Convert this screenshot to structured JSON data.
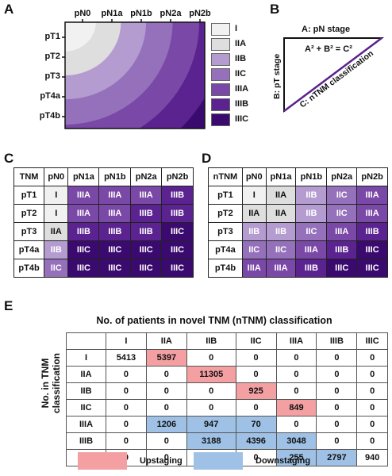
{
  "panels": {
    "a": "A",
    "b": "B",
    "c": "C",
    "d": "D",
    "e": "E"
  },
  "colors": {
    "I": "#f1f1f1",
    "IIA": "#dedede",
    "IIB": "#b49cd0",
    "IIC": "#9671bb",
    "IIIA": "#7a48a6",
    "IIIB": "#5a2390",
    "IIIC": "#3a0a6e",
    "upstaging": "#f4a0a2",
    "downstaging": "#9fc1e6",
    "grid_header": "#ffffff"
  },
  "panel_a": {
    "columns": [
      "pN0",
      "pN1a",
      "pN1b",
      "pN2a",
      "pN2b"
    ],
    "rows": [
      "pT1",
      "pT2",
      "pT3",
      "pT4a",
      "pT4b"
    ],
    "legend": [
      "I",
      "IIA",
      "IIB",
      "IIC",
      "IIIA",
      "IIIB",
      "IIIC"
    ]
  },
  "panel_b": {
    "pn": "A: pN stage",
    "formula": "A² + B² = C²",
    "pt": "B: pT stage",
    "ntnm": "C: nTNM classification"
  },
  "panel_c": {
    "header": [
      "TNM",
      "pN0",
      "pN1a",
      "pN1b",
      "pN2a",
      "pN2b"
    ],
    "rows": [
      {
        "label": "pT1",
        "cells": [
          "I",
          "IIIA",
          "IIIA",
          "IIIA",
          "IIIB"
        ]
      },
      {
        "label": "pT2",
        "cells": [
          "I",
          "IIIA",
          "IIIA",
          "IIIB",
          "IIIB"
        ]
      },
      {
        "label": "pT3",
        "cells": [
          "IIA",
          "IIIB",
          "IIIB",
          "IIIB",
          "IIIC"
        ]
      },
      {
        "label": "pT4a",
        "cells": [
          "IIB",
          "IIIC",
          "IIIC",
          "IIIC",
          "IIIC"
        ]
      },
      {
        "label": "pT4b",
        "cells": [
          "IIC",
          "IIIC",
          "IIIC",
          "IIIC",
          "IIIC"
        ]
      }
    ]
  },
  "panel_d": {
    "header": [
      "nTNM",
      "pN0",
      "pN1a",
      "pN1b",
      "pN2a",
      "pN2b"
    ],
    "rows": [
      {
        "label": "pT1",
        "cells": [
          "I",
          "IIA",
          "IIB",
          "IIC",
          "IIIA"
        ]
      },
      {
        "label": "pT2",
        "cells": [
          "IIA",
          "IIA",
          "IIB",
          "IIC",
          "IIIA"
        ]
      },
      {
        "label": "pT3",
        "cells": [
          "IIB",
          "IIB",
          "IIC",
          "IIIA",
          "IIIB"
        ]
      },
      {
        "label": "pT4a",
        "cells": [
          "IIC",
          "IIC",
          "IIIA",
          "IIIB",
          "IIIC"
        ]
      },
      {
        "label": "pT4b",
        "cells": [
          "IIIA",
          "IIIA",
          "IIIB",
          "IIIC",
          "IIIC"
        ]
      }
    ]
  },
  "panel_e": {
    "title": "No. of patients in novel TNM (nTNM) classification",
    "ylabel_line1": "No. in TNM",
    "ylabel_line2": "classification",
    "columns": [
      "I",
      "IIA",
      "IIB",
      "IIC",
      "IIIA",
      "IIIB",
      "IIIC"
    ],
    "rows": [
      {
        "label": "I",
        "values": [
          "5413",
          "5397",
          "0",
          "0",
          "0",
          "0",
          "0"
        ],
        "hl": [
          "",
          "up",
          "",
          "",
          "",
          "",
          ""
        ]
      },
      {
        "label": "IIA",
        "values": [
          "0",
          "0",
          "11305",
          "0",
          "0",
          "0",
          "0"
        ],
        "hl": [
          "",
          "",
          "up",
          "",
          "",
          "",
          ""
        ]
      },
      {
        "label": "IIB",
        "values": [
          "0",
          "0",
          "0",
          "925",
          "0",
          "0",
          "0"
        ],
        "hl": [
          "",
          "",
          "",
          "up",
          "",
          "",
          ""
        ]
      },
      {
        "label": "IIC",
        "values": [
          "0",
          "0",
          "0",
          "0",
          "849",
          "0",
          "0"
        ],
        "hl": [
          "",
          "",
          "",
          "",
          "up",
          "",
          ""
        ]
      },
      {
        "label": "IIIA",
        "values": [
          "0",
          "1206",
          "947",
          "70",
          "0",
          "0",
          "0"
        ],
        "hl": [
          "",
          "down",
          "down",
          "down",
          "",
          "",
          ""
        ]
      },
      {
        "label": "IIIB",
        "values": [
          "0",
          "0",
          "3188",
          "4396",
          "3048",
          "0",
          "0"
        ],
        "hl": [
          "",
          "",
          "down",
          "down",
          "down",
          "",
          ""
        ]
      },
      {
        "label": "IIIC",
        "values": [
          "0",
          "0",
          "0",
          "0",
          "255",
          "2797",
          "940"
        ],
        "hl": [
          "",
          "",
          "",
          "",
          "down",
          "down",
          ""
        ]
      }
    ],
    "legend_up": "Upstaging",
    "legend_down": "Downstaging"
  }
}
